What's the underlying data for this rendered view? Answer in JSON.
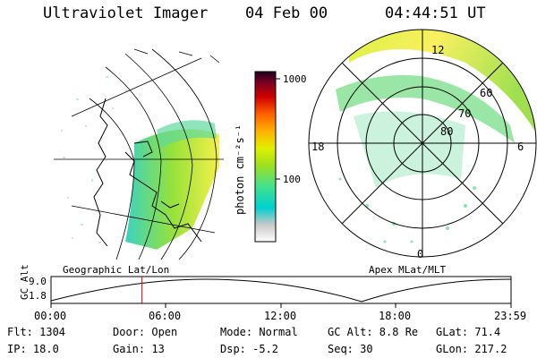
{
  "header": {
    "instrument": "Ultraviolet Imager",
    "date": "04 Feb 00",
    "time": "04:44:51 UT"
  },
  "colorbar": {
    "unit_label": "photon cm⁻²s⁻¹",
    "ticks": [
      "1000",
      "100"
    ],
    "colors": [
      "#ffffff",
      "#c8c8c8",
      "#00d0d0",
      "#40e090",
      "#a0e020",
      "#e0f000",
      "#ffb000",
      "#ff6000",
      "#d00000",
      "#800020",
      "#200020"
    ]
  },
  "left_panel": {
    "caption": "Geographic Lat/Lon"
  },
  "right_panel": {
    "caption": "Apex MLat/MLT",
    "mlt_labels": {
      "top": "12",
      "left": "18",
      "right": "6",
      "bottom": "0"
    },
    "lat_labels": [
      "60",
      "70",
      "80"
    ]
  },
  "altitude_track": {
    "axis_label": "GC Alt",
    "y_ticks": [
      "9.0",
      "1.8"
    ],
    "x_ticks": [
      "00:00",
      "06:00",
      "12:00",
      "18:00",
      "23:59"
    ],
    "marker_time": "04:44:51",
    "marker_fraction": 0.1978,
    "marker_color": "#cc0000"
  },
  "info": {
    "flt": "Flt: 1304",
    "ip": "IP: 18.0",
    "door": "Door: Open",
    "gain": "Gain: 13",
    "mode": "Mode: Normal",
    "dsp": "Dsp:   -5.2",
    "gc_alt": "GC Alt: 8.8 Re",
    "seq": "Seq: 30",
    "glat": "GLat:  71.4",
    "glon": "GLon: 217.2"
  }
}
